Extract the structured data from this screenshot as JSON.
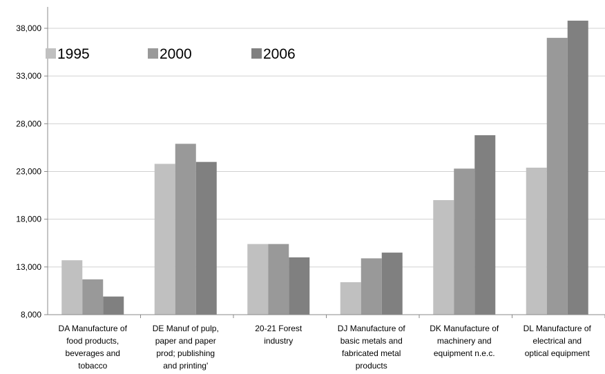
{
  "chart_data": {
    "type": "bar",
    "categories": [
      [
        "DA Manufacture of",
        "food products,",
        "beverages and",
        "tobacco"
      ],
      [
        "DE Manuf of pulp,",
        "paper and paper",
        "prod; publishing",
        "and printing'"
      ],
      [
        "20-21 Forest",
        "industry"
      ],
      [
        "DJ Manufacture of",
        "basic metals and",
        "fabricated metal",
        "products"
      ],
      [
        "DK Manufacture of",
        "machinery and",
        "equipment n.e.c."
      ],
      [
        "DL Manufacture of",
        "electrical and",
        "optical equipment"
      ]
    ],
    "series": [
      {
        "name": "1995",
        "color": "#c0c0c0",
        "values": [
          13700,
          23800,
          15400,
          11400,
          20000,
          23400
        ]
      },
      {
        "name": "2000",
        "color": "#999999",
        "values": [
          11700,
          25900,
          15400,
          13900,
          23300,
          37000
        ]
      },
      {
        "name": "2006",
        "color": "#808080",
        "values": [
          9900,
          24000,
          14000,
          14500,
          26800,
          38800
        ]
      }
    ],
    "y_ticks": [
      "8,000",
      "13,000",
      "18,000",
      "23,000",
      "28,000",
      "33,000",
      "38,000"
    ],
    "ylim": [
      8000,
      39500
    ],
    "legend_position": "top-left",
    "grid": true
  }
}
